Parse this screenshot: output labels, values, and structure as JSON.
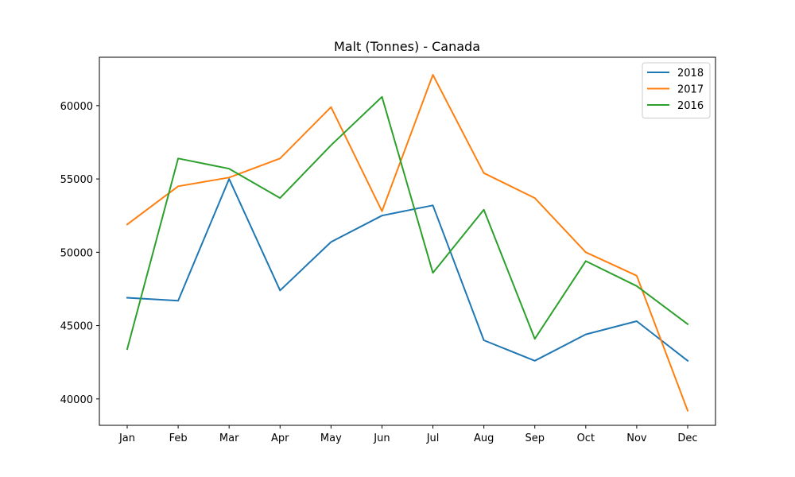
{
  "chart_data": {
    "type": "line",
    "title": "Malt (Tonnes) - Canada",
    "xlabel": "",
    "ylabel": "",
    "categories": [
      "Jan",
      "Feb",
      "Mar",
      "Apr",
      "May",
      "Jun",
      "Jul",
      "Aug",
      "Sep",
      "Oct",
      "Nov",
      "Dec"
    ],
    "yticks": [
      40000,
      45000,
      50000,
      55000,
      60000
    ],
    "ylim": [
      38200,
      63300
    ],
    "grid": false,
    "legend_position": "top-right",
    "series": [
      {
        "name": "2018",
        "color": "#1f77b4",
        "values": [
          46900,
          46700,
          55000,
          47400,
          50700,
          52500,
          53200,
          44000,
          42600,
          44400,
          45300,
          42600
        ]
      },
      {
        "name": "2017",
        "color": "#ff7f0e",
        "values": [
          51900,
          54500,
          55100,
          56400,
          59900,
          52800,
          62100,
          55400,
          53700,
          50000,
          48400,
          39200
        ]
      },
      {
        "name": "2016",
        "color": "#2ca02c",
        "values": [
          43400,
          56400,
          55700,
          53700,
          57300,
          60600,
          48600,
          52900,
          44100,
          49400,
          47700,
          45100
        ]
      }
    ]
  }
}
